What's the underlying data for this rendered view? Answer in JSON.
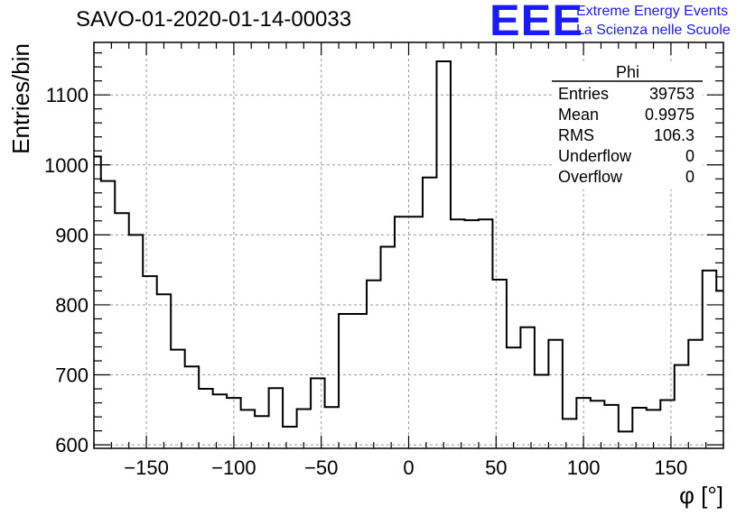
{
  "header": {
    "title": "SAVO-01-2020-01-14-00033",
    "logo_text": "EEE",
    "logo_line1": "Extreme Energy Events",
    "logo_line2": "La Scienza nelle Scuole",
    "logo_color": "#1a1aff"
  },
  "stats_box": {
    "title": "Phi",
    "rows": [
      {
        "label": "Entries",
        "value": "39753"
      },
      {
        "label": "Mean",
        "value": "0.9975"
      },
      {
        "label": "RMS",
        "value": "106.3"
      },
      {
        "label": "Underflow",
        "value": "0"
      },
      {
        "label": "Overflow",
        "value": "0"
      }
    ]
  },
  "chart_data": {
    "type": "histogram",
    "title": "SAVO-01-2020-01-14-00033",
    "xlabel": "φ [°]",
    "ylabel": "Entries/bin",
    "xlim": [
      -180,
      180
    ],
    "ylim": [
      595,
      1175
    ],
    "bin_width": 8,
    "x_ticks": [
      -150,
      -100,
      -50,
      0,
      50,
      100,
      150
    ],
    "x_tick_labels": [
      "−150",
      "−100",
      "−50",
      "0",
      "50",
      "100",
      "150"
    ],
    "y_ticks": [
      600,
      700,
      800,
      900,
      1000,
      1100
    ],
    "y_tick_labels": [
      "600",
      "700",
      "800",
      "900",
      "1000",
      "1100"
    ],
    "grid": true,
    "line_color": "#000000",
    "bins": [
      {
        "x_low": -180,
        "value": 1012
      },
      {
        "x_low": -176,
        "value": 977
      },
      {
        "x_low": -168,
        "value": 931
      },
      {
        "x_low": -160,
        "value": 900
      },
      {
        "x_low": -152,
        "value": 841
      },
      {
        "x_low": -144,
        "value": 815
      },
      {
        "x_low": -136,
        "value": 736
      },
      {
        "x_low": -128,
        "value": 712
      },
      {
        "x_low": -120,
        "value": 680
      },
      {
        "x_low": -112,
        "value": 672
      },
      {
        "x_low": -104,
        "value": 667
      },
      {
        "x_low": -96,
        "value": 650
      },
      {
        "x_low": -88,
        "value": 641
      },
      {
        "x_low": -80,
        "value": 681
      },
      {
        "x_low": -72,
        "value": 626
      },
      {
        "x_low": -64,
        "value": 651
      },
      {
        "x_low": -56,
        "value": 695
      },
      {
        "x_low": -48,
        "value": 654
      },
      {
        "x_low": -40,
        "value": 787
      },
      {
        "x_low": -32,
        "value": 787
      },
      {
        "x_low": -24,
        "value": 835
      },
      {
        "x_low": -16,
        "value": 883
      },
      {
        "x_low": -8,
        "value": 926
      },
      {
        "x_low": 0,
        "value": 926
      },
      {
        "x_low": 8,
        "value": 982
      },
      {
        "x_low": 16,
        "value": 1148
      },
      {
        "x_low": 24,
        "value": 922
      },
      {
        "x_low": 32,
        "value": 921
      },
      {
        "x_low": 40,
        "value": 922
      },
      {
        "x_low": 48,
        "value": 836
      },
      {
        "x_low": 56,
        "value": 739
      },
      {
        "x_low": 64,
        "value": 768
      },
      {
        "x_low": 72,
        "value": 700
      },
      {
        "x_low": 80,
        "value": 750
      },
      {
        "x_low": 88,
        "value": 637
      },
      {
        "x_low": 96,
        "value": 667
      },
      {
        "x_low": 104,
        "value": 663
      },
      {
        "x_low": 112,
        "value": 657
      },
      {
        "x_low": 120,
        "value": 619
      },
      {
        "x_low": 128,
        "value": 653
      },
      {
        "x_low": 136,
        "value": 650
      },
      {
        "x_low": 144,
        "value": 664
      },
      {
        "x_low": 152,
        "value": 714
      },
      {
        "x_low": 160,
        "value": 750
      },
      {
        "x_low": 168,
        "value": 849
      },
      {
        "x_low": 176,
        "value": 820
      }
    ]
  }
}
